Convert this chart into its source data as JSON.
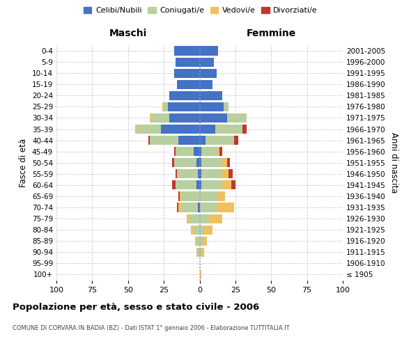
{
  "age_groups": [
    "100+",
    "95-99",
    "90-94",
    "85-89",
    "80-84",
    "75-79",
    "70-74",
    "65-69",
    "60-64",
    "55-59",
    "50-54",
    "45-49",
    "40-44",
    "35-39",
    "30-34",
    "25-29",
    "20-24",
    "15-19",
    "10-14",
    "5-9",
    "0-4"
  ],
  "birth_years": [
    "≤ 1905",
    "1906-1910",
    "1911-1915",
    "1916-1920",
    "1921-1925",
    "1926-1930",
    "1931-1935",
    "1936-1940",
    "1941-1945",
    "1946-1950",
    "1951-1955",
    "1956-1960",
    "1961-1965",
    "1966-1970",
    "1971-1975",
    "1976-1980",
    "1981-1985",
    "1986-1990",
    "1991-1995",
    "1996-2000",
    "2001-2005"
  ],
  "maschi_celibi": [
    0,
    0,
    0,
    0,
    0,
    0,
    1,
    0,
    2,
    1,
    2,
    4,
    15,
    27,
    21,
    22,
    21,
    16,
    18,
    17,
    18
  ],
  "maschi_coniugati": [
    0,
    0,
    1,
    2,
    4,
    7,
    12,
    13,
    15,
    15,
    16,
    13,
    20,
    17,
    13,
    3,
    0,
    0,
    0,
    0,
    0
  ],
  "maschi_vedovi": [
    0,
    0,
    1,
    1,
    2,
    2,
    2,
    1,
    0,
    0,
    0,
    0,
    0,
    1,
    1,
    1,
    0,
    0,
    0,
    0,
    0
  ],
  "maschi_divorziati": [
    0,
    0,
    0,
    0,
    0,
    0,
    1,
    1,
    2,
    1,
    1,
    1,
    1,
    0,
    0,
    0,
    0,
    0,
    0,
    0,
    0
  ],
  "femmine_nubili": [
    0,
    0,
    0,
    0,
    0,
    0,
    0,
    0,
    1,
    1,
    1,
    1,
    4,
    11,
    19,
    17,
    16,
    9,
    12,
    10,
    13
  ],
  "femmine_coniugate": [
    0,
    0,
    1,
    2,
    3,
    7,
    12,
    13,
    15,
    14,
    15,
    12,
    20,
    19,
    14,
    3,
    0,
    0,
    0,
    0,
    0
  ],
  "femmine_vedove": [
    1,
    0,
    2,
    3,
    6,
    9,
    12,
    5,
    6,
    5,
    3,
    1,
    0,
    0,
    0,
    0,
    0,
    0,
    0,
    0,
    0
  ],
  "femmine_divorziate": [
    0,
    0,
    0,
    0,
    0,
    0,
    0,
    0,
    3,
    3,
    2,
    2,
    3,
    3,
    0,
    0,
    0,
    0,
    0,
    0,
    0
  ],
  "color_celibi": "#4472c4",
  "color_coniugati": "#b8cfa0",
  "color_vedovi": "#f0c060",
  "color_divorziati": "#c0392b",
  "xlim": 100,
  "xticks": [
    -100,
    -75,
    -50,
    -25,
    0,
    25,
    50,
    75,
    100
  ],
  "title": "Popolazione per età, sesso e stato civile - 2006",
  "subtitle": "COMUNE DI CORVARA IN BADIA (BZ) - Dati ISTAT 1° gennaio 2006 - Elaborazione TUTTITALIA.IT",
  "ylabel_left": "Fasce di età",
  "ylabel_right": "Anni di nascita",
  "label_maschi": "Maschi",
  "label_femmine": "Femmine",
  "legend_labels": [
    "Celibi/Nubili",
    "Coniugati/e",
    "Vedovi/e",
    "Divorziati/e"
  ]
}
